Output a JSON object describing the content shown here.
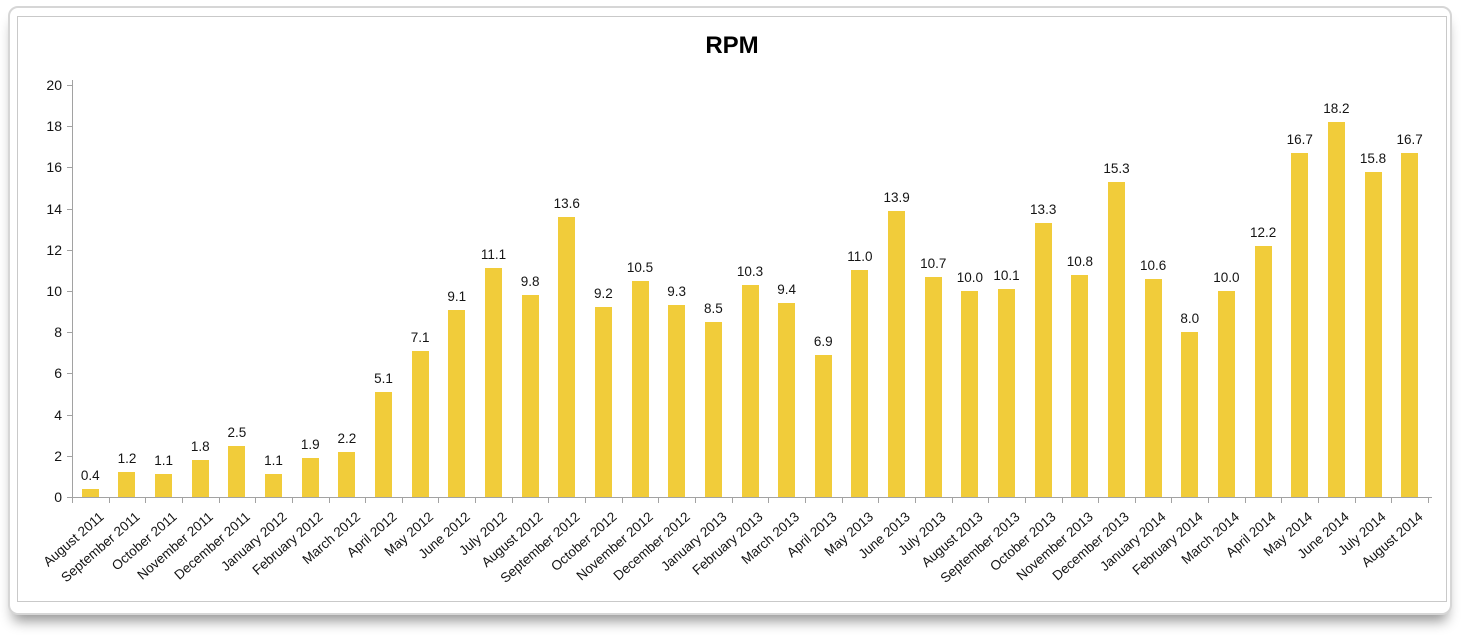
{
  "chart_data": {
    "type": "bar",
    "title": "RPM",
    "categories": [
      "August 2011",
      "September 2011",
      "October 2011",
      "November 2011",
      "December 2011",
      "January 2012",
      "February 2012",
      "March 2012",
      "April 2012",
      "May 2012",
      "June 2012",
      "July 2012",
      "August 2012",
      "September 2012",
      "October 2012",
      "November 2012",
      "December 2012",
      "January 2013",
      "February 2013",
      "March 2013",
      "April 2013",
      "May 2013",
      "June 2013",
      "July 2013",
      "August 2013",
      "September 2013",
      "October 2013",
      "November 2013",
      "December 2013",
      "January 2014",
      "February 2014",
      "March 2014",
      "April 2014",
      "May 2014",
      "June 2014",
      "July 2014",
      "August 2014"
    ],
    "values": [
      0.4,
      1.2,
      1.1,
      1.8,
      2.5,
      1.1,
      1.9,
      2.2,
      5.1,
      7.1,
      9.1,
      11.1,
      9.8,
      13.6,
      9.2,
      10.5,
      9.3,
      8.5,
      10.3,
      9.4,
      6.9,
      11.0,
      13.9,
      10.7,
      10.0,
      10.1,
      13.3,
      10.8,
      15.3,
      10.6,
      8.0,
      10.0,
      12.2,
      16.7,
      18.2,
      15.8,
      16.7
    ],
    "value_labels": [
      "0.4",
      "1.2",
      "1.1",
      "1.8",
      "2.5",
      "1.1",
      "1.9",
      "2.2",
      "5.1",
      "7.1",
      "9.1",
      "11.1",
      "9.8",
      "13.6",
      "9.2",
      "10.5",
      "9.3",
      "8.5",
      "10.3",
      "9.4",
      "6.9",
      "11.0",
      "13.9",
      "10.7",
      "10.0",
      "10.1",
      "13.3",
      "10.8",
      "15.3",
      "10.6",
      "8.0",
      "10.0",
      "12.2",
      "16.7",
      "18.2",
      "15.8",
      "16.7"
    ],
    "xlabel": "",
    "ylabel": "",
    "ylim": [
      0,
      20
    ],
    "ytick_step": 2,
    "ytick_labels": [
      "0",
      "2",
      "4",
      "6",
      "8",
      "10",
      "12",
      "14",
      "16",
      "18",
      "20"
    ],
    "bar_color": "#F1CC3A",
    "axis_color": "#a2a2a2",
    "text_color": "#141414",
    "grid": false,
    "legend": false
  }
}
